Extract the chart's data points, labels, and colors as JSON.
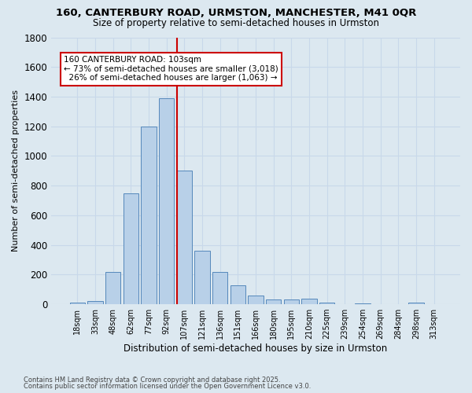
{
  "title_line1": "160, CANTERBURY ROAD, URMSTON, MANCHESTER, M41 0QR",
  "title_line2": "Size of property relative to semi-detached houses in Urmston",
  "xlabel": "Distribution of semi-detached houses by size in Urmston",
  "ylabel": "Number of semi-detached properties",
  "categories": [
    "18sqm",
    "33sqm",
    "48sqm",
    "62sqm",
    "77sqm",
    "92sqm",
    "107sqm",
    "121sqm",
    "136sqm",
    "151sqm",
    "166sqm",
    "180sqm",
    "195sqm",
    "210sqm",
    "225sqm",
    "239sqm",
    "254sqm",
    "269sqm",
    "284sqm",
    "298sqm",
    "313sqm"
  ],
  "values": [
    10,
    20,
    220,
    750,
    1200,
    1390,
    900,
    360,
    220,
    130,
    60,
    30,
    30,
    35,
    10,
    0,
    5,
    0,
    0,
    10,
    0
  ],
  "bar_color": "#b8d0e8",
  "bar_edge_color": "#5588bb",
  "grid_color": "#c8d8ea",
  "background_color": "#dce8f0",
  "vline_color": "#cc0000",
  "annotation_text": "160 CANTERBURY ROAD: 103sqm\n← 73% of semi-detached houses are smaller (3,018)\n  26% of semi-detached houses are larger (1,063) →",
  "annotation_box_color": "#ffffff",
  "annotation_box_edge": "#cc0000",
  "footnote_line1": "Contains HM Land Registry data © Crown copyright and database right 2025.",
  "footnote_line2": "Contains public sector information licensed under the Open Government Licence v3.0.",
  "ylim": [
    0,
    1800
  ],
  "yticks": [
    0,
    200,
    400,
    600,
    800,
    1000,
    1200,
    1400,
    1600,
    1800
  ]
}
